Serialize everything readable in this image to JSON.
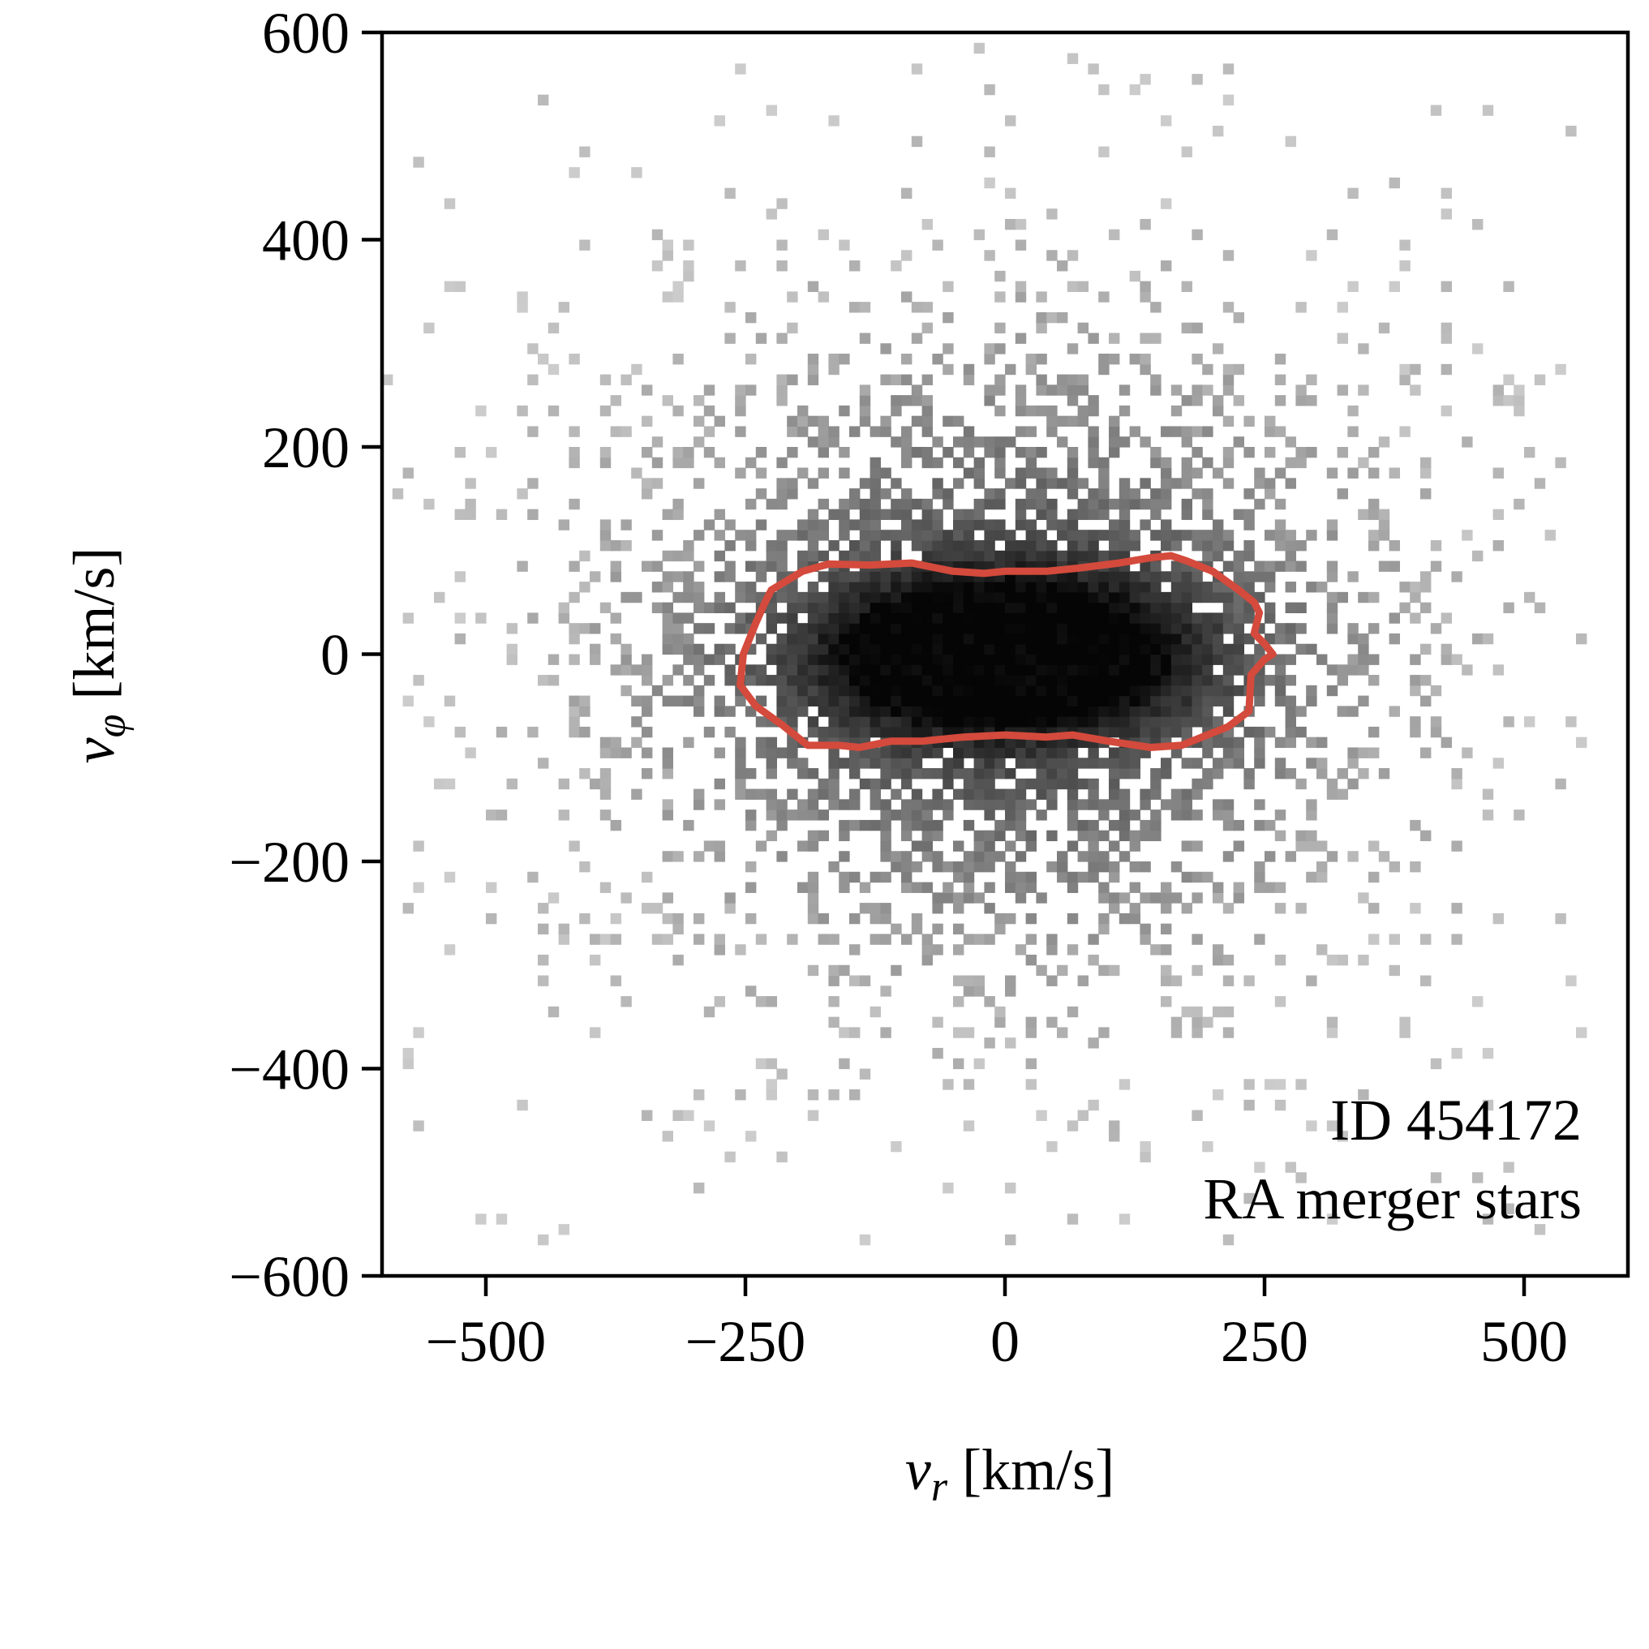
{
  "chart_data": {
    "type": "heatmap",
    "xlabel": {
      "symbol": "v",
      "subscript": "r",
      "unit": " [km/s]"
    },
    "ylabel": {
      "symbol": "v",
      "subscript": "φ",
      "unit": " [km/s]"
    },
    "xlim": [
      -600,
      600
    ],
    "ylim": [
      -600,
      600
    ],
    "x_ticks": [
      -500,
      -250,
      0,
      250,
      500
    ],
    "y_ticks": [
      -600,
      -400,
      -200,
      0,
      200,
      400,
      600
    ],
    "x_tick_labels": [
      "−500",
      "−250",
      "0",
      "250",
      "500"
    ],
    "y_tick_labels": [
      "−600",
      "−400",
      "−200",
      "0",
      "200",
      "400",
      "600"
    ],
    "grid": false,
    "colormap": "greys",
    "bin_size_kms": 10,
    "density_model": {
      "description": "2D histogram of stellar velocities; peak density at origin",
      "core_center": [
        0,
        0
      ],
      "core_sigma_vr": 140,
      "core_sigma_vphi": 55,
      "halo_sigma_vr": 230,
      "halo_sigma_vphi": 190,
      "extent_vr": [
        -600,
        560
      ],
      "extent_vphi": [
        -570,
        590
      ]
    },
    "contour": {
      "color": "#d44a3c",
      "points": [
        [
          -255,
          -30
        ],
        [
          -240,
          -50
        ],
        [
          -215,
          -68
        ],
        [
          -190,
          -88
        ],
        [
          -160,
          -88
        ],
        [
          -140,
          -90
        ],
        [
          -110,
          -84
        ],
        [
          -80,
          -84
        ],
        [
          -40,
          -80
        ],
        [
          0,
          -78
        ],
        [
          40,
          -80
        ],
        [
          65,
          -78
        ],
        [
          100,
          -84
        ],
        [
          140,
          -90
        ],
        [
          170,
          -88
        ],
        [
          195,
          -78
        ],
        [
          215,
          -70
        ],
        [
          235,
          -55
        ],
        [
          237,
          -20
        ],
        [
          250,
          -5
        ],
        [
          258,
          0
        ],
        [
          250,
          10
        ],
        [
          240,
          20
        ],
        [
          245,
          40
        ],
        [
          240,
          50
        ],
        [
          225,
          62
        ],
        [
          200,
          80
        ],
        [
          175,
          90
        ],
        [
          160,
          95
        ],
        [
          140,
          93
        ],
        [
          110,
          88
        ],
        [
          70,
          83
        ],
        [
          40,
          80
        ],
        [
          0,
          80
        ],
        [
          -20,
          78
        ],
        [
          -50,
          80
        ],
        [
          -90,
          88
        ],
        [
          -130,
          86
        ],
        [
          -170,
          87
        ],
        [
          -195,
          80
        ],
        [
          -225,
          62
        ],
        [
          -232,
          48
        ],
        [
          -240,
          30
        ],
        [
          -252,
          0
        ]
      ]
    },
    "annotations": [
      "ID 454172",
      "RA merger stars"
    ]
  }
}
